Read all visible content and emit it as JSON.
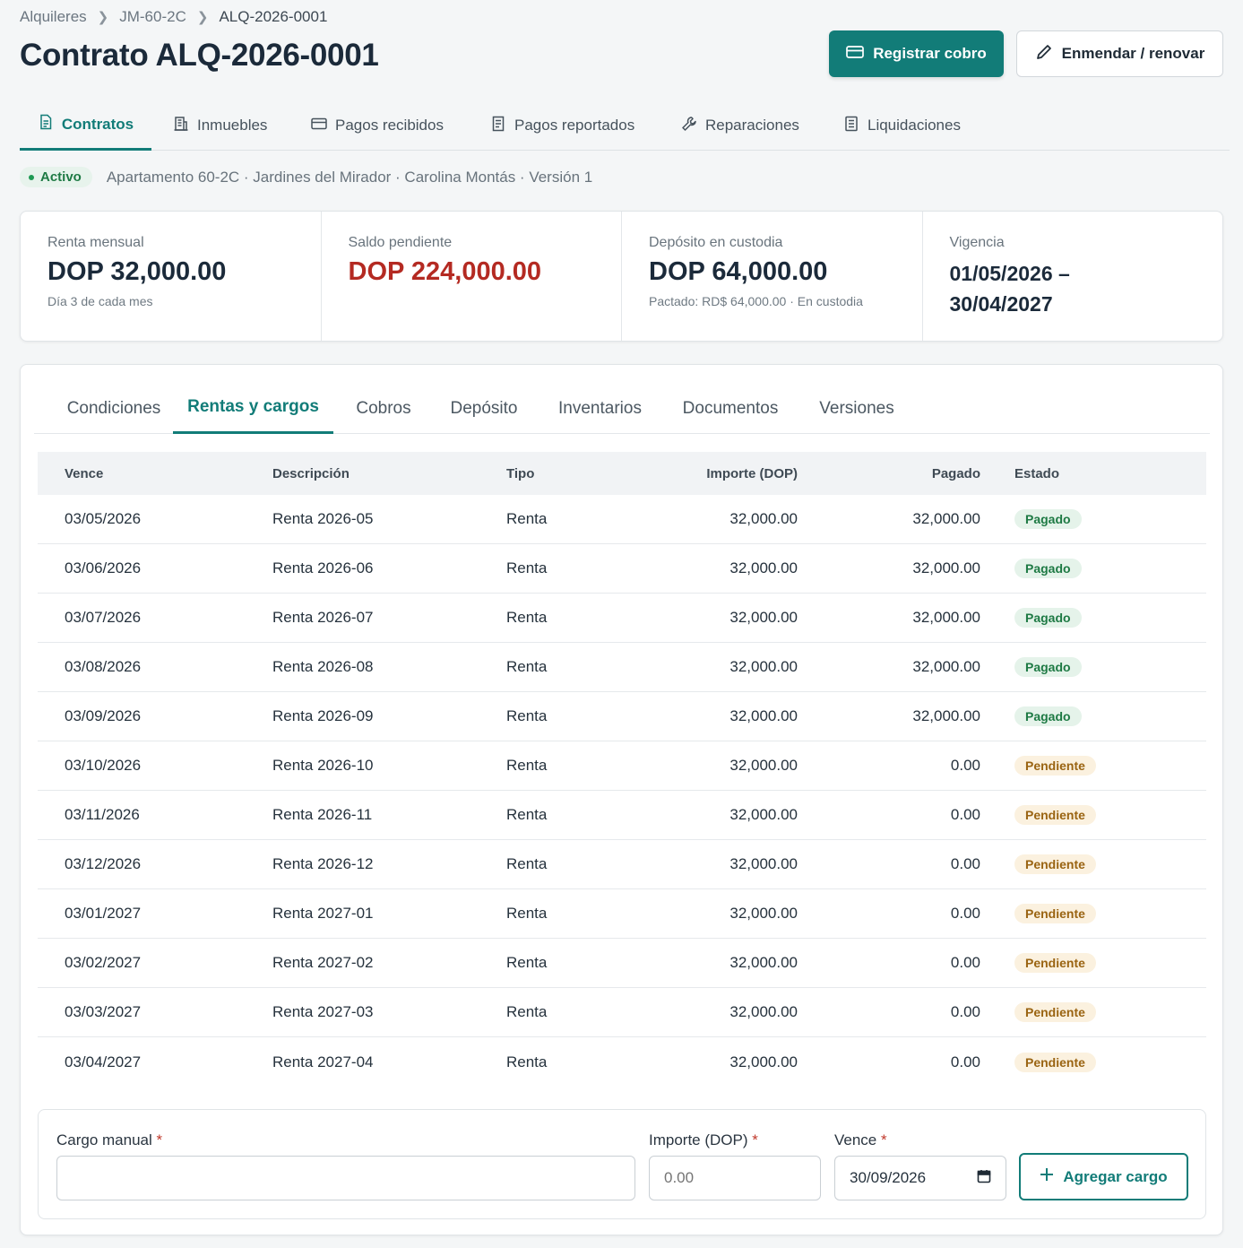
{
  "breadcrumb": [
    "Alquileres",
    "JM-60-2C",
    "ALQ-2026-0001"
  ],
  "title": "Contrato ALQ-2026-0001",
  "actions": {
    "register": "Registrar cobro",
    "amend": "Enmendar / renovar"
  },
  "nav": [
    {
      "label": "Contratos",
      "icon": "document-icon",
      "active": true
    },
    {
      "label": "Inmuebles",
      "icon": "building-icon"
    },
    {
      "label": "Pagos recibidos",
      "icon": "card-icon"
    },
    {
      "label": "Pagos reportados",
      "icon": "receipt-icon"
    },
    {
      "label": "Reparaciones",
      "icon": "wrench-icon"
    },
    {
      "label": "Liquidaciones",
      "icon": "list-document-icon"
    }
  ],
  "status": {
    "badge": "Activo",
    "text": "Apartamento 60-2C · Jardines del Mirador · Carolina Montás · Versión 1"
  },
  "summary": {
    "rent": {
      "label": "Renta mensual",
      "value": "DOP 32,000.00",
      "sub": "Día 3 de cada mes"
    },
    "balance": {
      "label": "Saldo pendiente",
      "value": "DOP 224,000.00"
    },
    "deposit": {
      "label": "Depósito en custodia",
      "value": "DOP 64,000.00",
      "sub": "Pactado: RD$ 64,000.00 · En custodia"
    },
    "term": {
      "label": "Vigencia",
      "start": "01/05/2026 –",
      "end": "30/04/2027"
    }
  },
  "tabs": [
    "Condiciones",
    "Rentas y cargos",
    "Cobros",
    "Depósito",
    "Inventarios",
    "Documentos",
    "Versiones"
  ],
  "table": {
    "headers": {
      "due": "Vence",
      "desc": "Descripción",
      "type": "Tipo",
      "amount": "Importe (DOP)",
      "paid": "Pagado",
      "status": "Estado"
    },
    "rows": [
      {
        "due": "03/05/2026",
        "desc": "Renta 2026-05",
        "type": "Renta",
        "amount": "32,000.00",
        "paid": "32,000.00",
        "status": "Pagado"
      },
      {
        "due": "03/06/2026",
        "desc": "Renta 2026-06",
        "type": "Renta",
        "amount": "32,000.00",
        "paid": "32,000.00",
        "status": "Pagado"
      },
      {
        "due": "03/07/2026",
        "desc": "Renta 2026-07",
        "type": "Renta",
        "amount": "32,000.00",
        "paid": "32,000.00",
        "status": "Pagado"
      },
      {
        "due": "03/08/2026",
        "desc": "Renta 2026-08",
        "type": "Renta",
        "amount": "32,000.00",
        "paid": "32,000.00",
        "status": "Pagado"
      },
      {
        "due": "03/09/2026",
        "desc": "Renta 2026-09",
        "type": "Renta",
        "amount": "32,000.00",
        "paid": "32,000.00",
        "status": "Pagado"
      },
      {
        "due": "03/10/2026",
        "desc": "Renta 2026-10",
        "type": "Renta",
        "amount": "32,000.00",
        "paid": "0.00",
        "status": "Pendiente"
      },
      {
        "due": "03/11/2026",
        "desc": "Renta 2026-11",
        "type": "Renta",
        "amount": "32,000.00",
        "paid": "0.00",
        "status": "Pendiente"
      },
      {
        "due": "03/12/2026",
        "desc": "Renta 2026-12",
        "type": "Renta",
        "amount": "32,000.00",
        "paid": "0.00",
        "status": "Pendiente"
      },
      {
        "due": "03/01/2027",
        "desc": "Renta 2027-01",
        "type": "Renta",
        "amount": "32,000.00",
        "paid": "0.00",
        "status": "Pendiente"
      },
      {
        "due": "03/02/2027",
        "desc": "Renta 2027-02",
        "type": "Renta",
        "amount": "32,000.00",
        "paid": "0.00",
        "status": "Pendiente"
      },
      {
        "due": "03/03/2027",
        "desc": "Renta 2027-03",
        "type": "Renta",
        "amount": "32,000.00",
        "paid": "0.00",
        "status": "Pendiente"
      },
      {
        "due": "03/04/2027",
        "desc": "Renta 2027-04",
        "type": "Renta",
        "amount": "32,000.00",
        "paid": "0.00",
        "status": "Pendiente"
      }
    ]
  },
  "form": {
    "charge_label": "Cargo manual",
    "charge_value": "",
    "amount_label": "Importe (DOP)",
    "amount_placeholder": "0.00",
    "due_label": "Vence",
    "due_value": "30/09/2026",
    "required_mark": "*",
    "add_label": "Agregar cargo"
  },
  "colors": {
    "accent": "#127c78",
    "danger": "#b42a22",
    "paid": "#1e7a44",
    "pending": "#9a6412"
  }
}
